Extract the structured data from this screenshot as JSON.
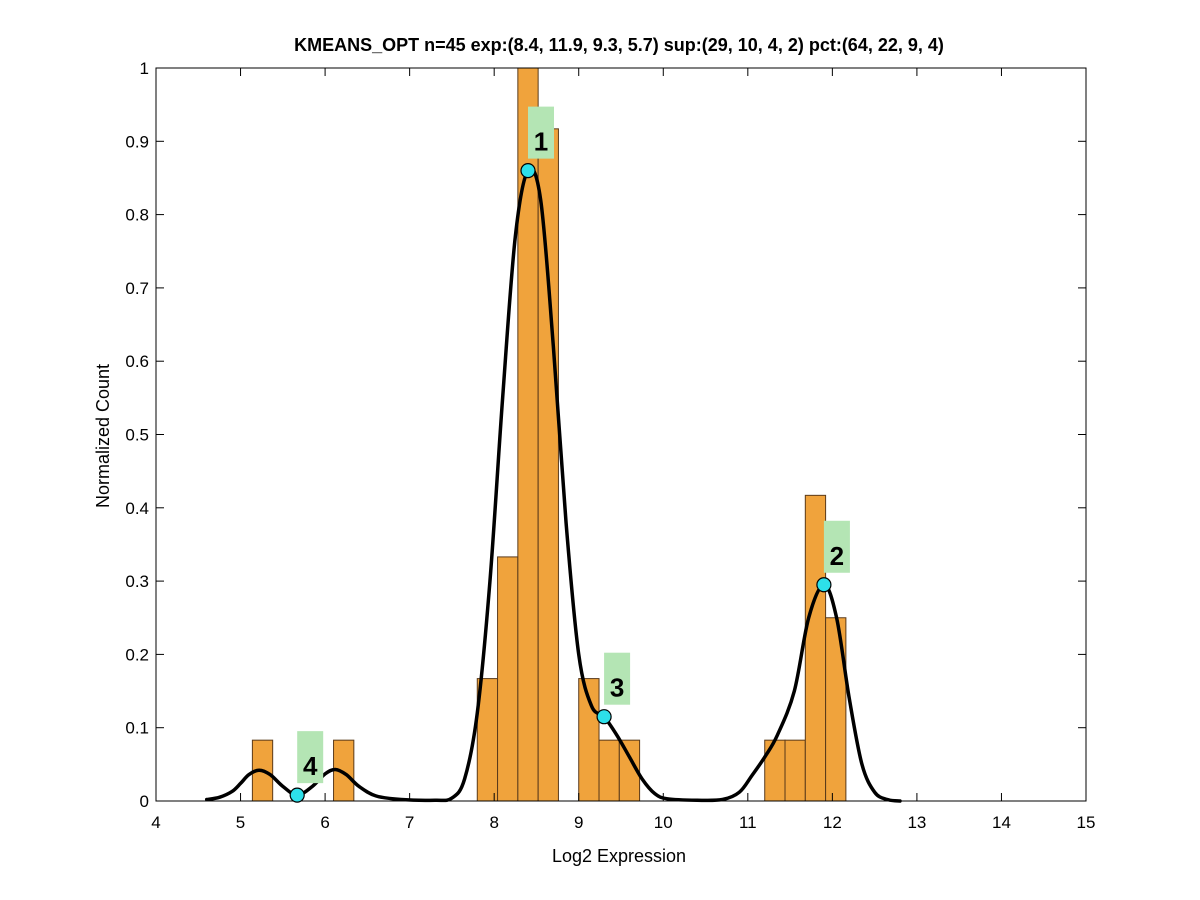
{
  "chart_data": {
    "type": "bar",
    "title": "KMEANS_OPT n=45 exp:(8.4, 11.9, 9.3, 5.7) sup:(29, 10, 4, 2) pct:(64, 22, 9, 4)",
    "xlabel": "Log2 Expression",
    "ylabel": "Normalized Count",
    "xlim": [
      4,
      15
    ],
    "ylim": [
      0,
      1
    ],
    "xticks": [
      "4",
      "5",
      "6",
      "7",
      "8",
      "9",
      "10",
      "11",
      "12",
      "13",
      "14",
      "15"
    ],
    "yticks": [
      "0",
      "0.1",
      "0.2",
      "0.3",
      "0.4",
      "0.5",
      "0.6",
      "0.7",
      "0.8",
      "0.9",
      "1"
    ],
    "grid": false,
    "bar_color": "#f0a33c",
    "histogram": [
      {
        "x0": 5.14,
        "x1": 5.38,
        "value": 0.083
      },
      {
        "x0": 6.1,
        "x1": 6.34,
        "value": 0.083
      },
      {
        "x0": 7.8,
        "x1": 8.04,
        "value": 0.167
      },
      {
        "x0": 8.04,
        "x1": 8.28,
        "value": 0.333
      },
      {
        "x0": 8.28,
        "x1": 8.52,
        "value": 1.0
      },
      {
        "x0": 8.52,
        "x1": 8.76,
        "value": 0.917
      },
      {
        "x0": 9.0,
        "x1": 9.24,
        "value": 0.167
      },
      {
        "x0": 9.24,
        "x1": 9.48,
        "value": 0.083
      },
      {
        "x0": 9.48,
        "x1": 9.72,
        "value": 0.083
      },
      {
        "x0": 11.2,
        "x1": 11.44,
        "value": 0.083
      },
      {
        "x0": 11.44,
        "x1": 11.68,
        "value": 0.083
      },
      {
        "x0": 11.68,
        "x1": 11.92,
        "value": 0.417
      },
      {
        "x0": 11.92,
        "x1": 12.16,
        "value": 0.25
      }
    ],
    "density_curve": {
      "color": "#000000",
      "points": [
        [
          4.6,
          0.002
        ],
        [
          4.75,
          0.005
        ],
        [
          4.9,
          0.013
        ],
        [
          5.0,
          0.024
        ],
        [
          5.1,
          0.036
        ],
        [
          5.22,
          0.042
        ],
        [
          5.35,
          0.036
        ],
        [
          5.5,
          0.02
        ],
        [
          5.67,
          0.008
        ],
        [
          5.85,
          0.02
        ],
        [
          6.0,
          0.037
        ],
        [
          6.12,
          0.043
        ],
        [
          6.25,
          0.036
        ],
        [
          6.4,
          0.02
        ],
        [
          6.6,
          0.007
        ],
        [
          6.9,
          0.002
        ],
        [
          7.3,
          0.001
        ],
        [
          7.5,
          0.004
        ],
        [
          7.65,
          0.03
        ],
        [
          7.8,
          0.12
        ],
        [
          7.95,
          0.3
        ],
        [
          8.1,
          0.55
        ],
        [
          8.25,
          0.77
        ],
        [
          8.4,
          0.86
        ],
        [
          8.55,
          0.82
        ],
        [
          8.7,
          0.62
        ],
        [
          8.85,
          0.38
        ],
        [
          9.0,
          0.2
        ],
        [
          9.15,
          0.13
        ],
        [
          9.3,
          0.115
        ],
        [
          9.45,
          0.09
        ],
        [
          9.6,
          0.06
        ],
        [
          9.75,
          0.03
        ],
        [
          9.9,
          0.01
        ],
        [
          10.05,
          0.003
        ],
        [
          10.4,
          0.001
        ],
        [
          10.7,
          0.002
        ],
        [
          10.9,
          0.012
        ],
        [
          11.05,
          0.035
        ],
        [
          11.2,
          0.06
        ],
        [
          11.35,
          0.09
        ],
        [
          11.55,
          0.15
        ],
        [
          11.72,
          0.25
        ],
        [
          11.9,
          0.295
        ],
        [
          12.05,
          0.25
        ],
        [
          12.2,
          0.14
        ],
        [
          12.35,
          0.05
        ],
        [
          12.5,
          0.012
        ],
        [
          12.65,
          0.002
        ],
        [
          12.8,
          0.0
        ]
      ]
    },
    "peaks": [
      {
        "label": "1",
        "x": 8.4,
        "y": 0.86
      },
      {
        "label": "2",
        "x": 11.9,
        "y": 0.295
      },
      {
        "label": "3",
        "x": 9.3,
        "y": 0.115
      },
      {
        "label": "4",
        "x": 5.67,
        "y": 0.008
      }
    ],
    "marker_color": "#2de0ea",
    "label_box_color": "#b4e5b4"
  }
}
